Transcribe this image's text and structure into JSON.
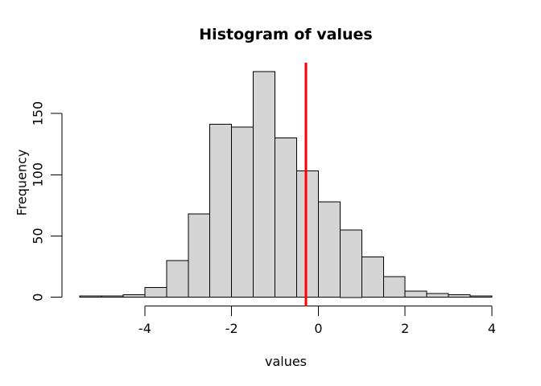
{
  "figure": {
    "title": "Histogram of values",
    "xlabel": "values",
    "ylabel": "Frequency"
  },
  "colors": {
    "background": "#FFFFFF",
    "bar_fill": "#D4D4D4",
    "bar_border": "#000000",
    "axis": "#000000",
    "text": "#000000",
    "vline": "#FF0000"
  },
  "chart_data": {
    "type": "histogram",
    "title": "Histogram of values",
    "xlabel": "values",
    "ylabel": "Frequency",
    "bin_edges": [
      -5.5,
      -5.0,
      -4.5,
      -4.0,
      -3.5,
      -3.0,
      -2.5,
      -2.0,
      -1.5,
      -1.0,
      -0.5,
      0.0,
      0.5,
      1.0,
      1.5,
      2.0,
      2.5,
      3.0,
      3.5,
      4.0
    ],
    "counts": [
      1,
      1,
      2,
      8,
      30,
      68,
      141,
      139,
      184,
      130,
      103,
      78,
      55,
      33,
      17,
      5,
      3,
      2,
      1
    ],
    "x_ticks": [
      -4,
      -2,
      0,
      2,
      4
    ],
    "x_tick_labels": [
      "-4",
      "-2",
      "0",
      "2",
      "4"
    ],
    "y_ticks": [
      0,
      50,
      100,
      150
    ],
    "y_tick_labels": [
      "0",
      "50",
      "100",
      "150"
    ],
    "x_axis_span": [
      -4,
      4
    ],
    "y_axis_span": [
      0,
      150
    ],
    "xlim": [
      -5.88,
      4.38
    ],
    "ylim": [
      -7.4,
      191.4
    ],
    "vline_x": -0.29,
    "grid": false,
    "legend": null
  }
}
